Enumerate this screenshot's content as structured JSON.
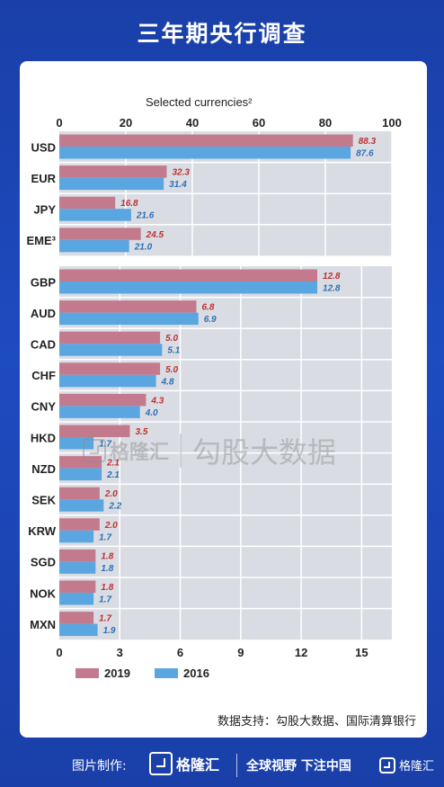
{
  "page": {
    "title": "三年期央行调查"
  },
  "source_note": "数据支持：勾股大数据、国际清算银行",
  "footer": {
    "made_by": "图片制作:",
    "brand": "格隆汇",
    "slogan": "全球视野 下注中国",
    "brand_small": "格隆汇"
  },
  "watermark": {
    "brand": "格隆汇",
    "text": "勾股大数据"
  },
  "colors": {
    "series_2019": "#c47a8d",
    "series_2016": "#5aa6e0",
    "plot_bg": "#d9dde3",
    "label_2019": "#c03030",
    "label_2016": "#2e6fb5"
  },
  "chart_data": [
    {
      "type": "bar",
      "orientation": "horizontal",
      "title": "Selected currencies²",
      "categories": [
        "USD",
        "EUR",
        "JPY",
        "EME³"
      ],
      "series": [
        {
          "name": "2019",
          "values": [
            88.3,
            32.3,
            16.8,
            24.5
          ],
          "labels": [
            "88.3",
            "32.3",
            "16.8",
            "24.5"
          ]
        },
        {
          "name": "2016",
          "values": [
            87.6,
            31.4,
            21.6,
            21.0
          ],
          "labels": [
            "87.6",
            "31.4",
            "21.6",
            "21.0"
          ]
        }
      ],
      "xlim": [
        0,
        100
      ],
      "ticks": [
        "0",
        "20",
        "40",
        "60",
        "80",
        "100"
      ],
      "tick_values": [
        0,
        20,
        40,
        60,
        80,
        100
      ],
      "axis_position": "top",
      "grid": true
    },
    {
      "type": "bar",
      "orientation": "horizontal",
      "categories": [
        "GBP",
        "AUD",
        "CAD",
        "CHF",
        "CNY",
        "HKD",
        "NZD",
        "SEK",
        "KRW",
        "SGD",
        "NOK",
        "MXN"
      ],
      "series": [
        {
          "name": "2019",
          "values": [
            12.8,
            6.8,
            5.0,
            5.0,
            4.3,
            3.5,
            2.1,
            2.0,
            2.0,
            1.8,
            1.8,
            1.7
          ],
          "labels": [
            "12.8",
            "6.8",
            "5.0",
            "5.0",
            "4.3",
            "3.5",
            "2.1",
            "2.0",
            "2.0",
            "1.8",
            "1.8",
            "1.7"
          ]
        },
        {
          "name": "2016",
          "values": [
            12.8,
            6.9,
            5.1,
            4.8,
            4.0,
            1.7,
            2.1,
            2.2,
            1.7,
            1.8,
            1.7,
            1.9
          ],
          "labels": [
            "12.8",
            "6.9",
            "5.1",
            "4.8",
            "4.0",
            "1.7",
            "2.1",
            "2.2",
            "1.7",
            "1.8",
            "1.7",
            "1.9"
          ]
        }
      ],
      "xlim": [
        0,
        16.5
      ],
      "ticks": [
        "0",
        "3",
        "6",
        "9",
        "12",
        "15"
      ],
      "tick_values": [
        0,
        3,
        6,
        9,
        12,
        15
      ],
      "axis_position": "bottom",
      "grid": true
    }
  ],
  "legend": {
    "position": "bottom-left",
    "items": [
      "2019",
      "2016"
    ]
  }
}
